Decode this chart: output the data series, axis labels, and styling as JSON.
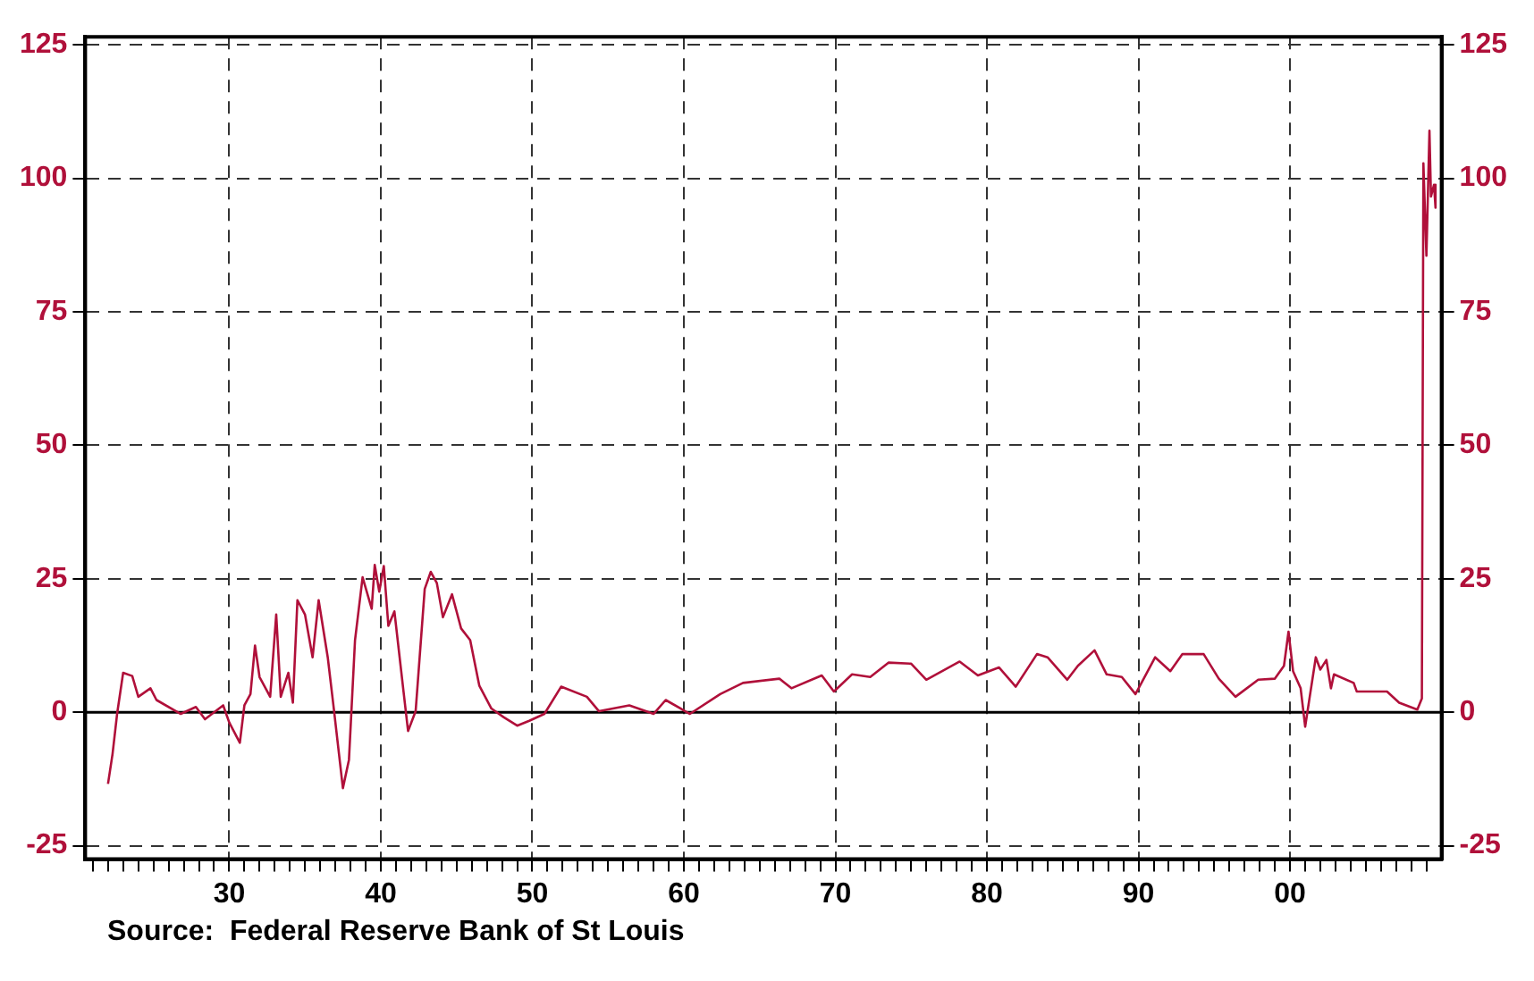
{
  "chart_data": {
    "type": "line",
    "x": [
      1922.0,
      1922.3,
      1922.6,
      1923.0,
      1923.6,
      1924.0,
      1924.8,
      1925.2,
      1926.8,
      1927.8,
      1928.4,
      1929.6,
      1930.0,
      1930.7,
      1931.0,
      1931.4,
      1931.7,
      1932.0,
      1932.7,
      1933.1,
      1933.4,
      1933.9,
      1934.2,
      1934.5,
      1935.0,
      1935.5,
      1935.9,
      1936.5,
      1936.9,
      1937.5,
      1937.9,
      1938.3,
      1938.8,
      1939.4,
      1939.6,
      1939.9,
      1940.2,
      1940.5,
      1940.9,
      1941.5,
      1941.8,
      1942.3,
      1942.9,
      1943.3,
      1943.7,
      1944.1,
      1944.7,
      1945.3,
      1945.9,
      1946.5,
      1947.3,
      1948.1,
      1949.0,
      1949.8,
      1950.8,
      1951.9,
      1953.6,
      1954.4,
      1956.4,
      1958.0,
      1958.8,
      1960.4,
      1962.4,
      1963.9,
      1966.3,
      1967.1,
      1969.1,
      1969.9,
      1971.1,
      1972.3,
      1973.5,
      1975.0,
      1976.0,
      1978.2,
      1979.4,
      1980.8,
      1981.9,
      1983.3,
      1984.0,
      1985.3,
      1986.0,
      1987.1,
      1987.9,
      1988.9,
      1989.8,
      1991.1,
      1992.1,
      1992.9,
      1994.3,
      1995.3,
      1996.4,
      1997.9,
      1999.0,
      1999.6,
      1999.9,
      2000.2,
      2000.7,
      2001.0,
      2001.3,
      2001.7,
      2002.0,
      2002.4,
      2002.7,
      2002.9,
      2004.2,
      2004.4,
      2006.4,
      2007.2,
      2008.4,
      2008.7,
      2008.8,
      2009.0,
      2009.2,
      2009.3,
      2009.5,
      2009.6
    ],
    "series": [
      {
        "color": "#b0103a",
        "values": [
          -13.4,
          -7.8,
          -0.3,
          7.4,
          6.8,
          2.9,
          4.5,
          2.3,
          -0.3,
          1,
          -1.3,
          1.3,
          -1.9,
          -5.7,
          1.3,
          3.4,
          12.5,
          6.6,
          2.9,
          18.3,
          2.9,
          7.4,
          1.8,
          21,
          18.3,
          10.3,
          21,
          10.3,
          0.7,
          -14.2,
          -8.9,
          13.5,
          25.3,
          19.4,
          27.6,
          22.6,
          27.4,
          16.2,
          18.9,
          3.9,
          -3.5,
          0.2,
          23.1,
          26.3,
          24.2,
          17.8,
          22.1,
          15.7,
          13.5,
          5,
          0.7,
          -0.9,
          -2.5,
          -1.6,
          -0.3,
          4.8,
          2.9,
          0.2,
          1.3,
          -0.3,
          2.3,
          -0.3,
          3.4,
          5.5,
          6.3,
          4.5,
          6.9,
          3.9,
          7.1,
          6.6,
          9.3,
          9.1,
          6.1,
          9.5,
          6.9,
          8.4,
          4.8,
          10.9,
          10.3,
          6.1,
          8.7,
          11.6,
          7.1,
          6.6,
          3.4,
          10.3,
          7.7,
          10.9,
          10.9,
          6.3,
          2.9,
          6.1,
          6.3,
          8.7,
          15.1,
          7.7,
          4.5,
          -2.7,
          2.9,
          10.3,
          8,
          9.8,
          4.5,
          7.1,
          5.5,
          3.9,
          3.9,
          1.8,
          0.5,
          2.6,
          102.8,
          85.5,
          108.9,
          96.6,
          98.8,
          94.5
        ]
      }
    ],
    "xlim": [
      1920.5,
      2010
    ],
    "xticks": [
      {
        "value": 1921,
        "label": null
      },
      {
        "value": 1922,
        "label": null
      },
      {
        "value": 1923,
        "label": null
      },
      {
        "value": 1924,
        "label": null
      },
      {
        "value": 1925,
        "label": null
      },
      {
        "value": 1926,
        "label": null
      },
      {
        "value": 1927,
        "label": null
      },
      {
        "value": 1928,
        "label": null
      },
      {
        "value": 1929,
        "label": null
      },
      {
        "value": 1930,
        "label": "30"
      },
      {
        "value": 1931,
        "label": null
      },
      {
        "value": 1932,
        "label": null
      },
      {
        "value": 1933,
        "label": null
      },
      {
        "value": 1934,
        "label": null
      },
      {
        "value": 1935,
        "label": null
      },
      {
        "value": 1936,
        "label": null
      },
      {
        "value": 1937,
        "label": null
      },
      {
        "value": 1938,
        "label": null
      },
      {
        "value": 1939,
        "label": null
      },
      {
        "value": 1940,
        "label": "40"
      },
      {
        "value": 1941,
        "label": null
      },
      {
        "value": 1942,
        "label": null
      },
      {
        "value": 1943,
        "label": null
      },
      {
        "value": 1944,
        "label": null
      },
      {
        "value": 1945,
        "label": null
      },
      {
        "value": 1946,
        "label": null
      },
      {
        "value": 1947,
        "label": null
      },
      {
        "value": 1948,
        "label": null
      },
      {
        "value": 1949,
        "label": null
      },
      {
        "value": 1950,
        "label": "50"
      },
      {
        "value": 1951,
        "label": null
      },
      {
        "value": 1952,
        "label": null
      },
      {
        "value": 1953,
        "label": null
      },
      {
        "value": 1954,
        "label": null
      },
      {
        "value": 1955,
        "label": null
      },
      {
        "value": 1956,
        "label": null
      },
      {
        "value": 1957,
        "label": null
      },
      {
        "value": 1958,
        "label": null
      },
      {
        "value": 1959,
        "label": null
      },
      {
        "value": 1960,
        "label": "60"
      },
      {
        "value": 1961,
        "label": null
      },
      {
        "value": 1962,
        "label": null
      },
      {
        "value": 1963,
        "label": null
      },
      {
        "value": 1964,
        "label": null
      },
      {
        "value": 1965,
        "label": null
      },
      {
        "value": 1966,
        "label": null
      },
      {
        "value": 1967,
        "label": null
      },
      {
        "value": 1968,
        "label": null
      },
      {
        "value": 1969,
        "label": null
      },
      {
        "value": 1970,
        "label": "70"
      },
      {
        "value": 1971,
        "label": null
      },
      {
        "value": 1972,
        "label": null
      },
      {
        "value": 1973,
        "label": null
      },
      {
        "value": 1974,
        "label": null
      },
      {
        "value": 1975,
        "label": null
      },
      {
        "value": 1976,
        "label": null
      },
      {
        "value": 1977,
        "label": null
      },
      {
        "value": 1978,
        "label": null
      },
      {
        "value": 1979,
        "label": null
      },
      {
        "value": 1980,
        "label": "80"
      },
      {
        "value": 1981,
        "label": null
      },
      {
        "value": 1982,
        "label": null
      },
      {
        "value": 1983,
        "label": null
      },
      {
        "value": 1984,
        "label": null
      },
      {
        "value": 1985,
        "label": null
      },
      {
        "value": 1986,
        "label": null
      },
      {
        "value": 1987,
        "label": null
      },
      {
        "value": 1988,
        "label": null
      },
      {
        "value": 1989,
        "label": null
      },
      {
        "value": 1990,
        "label": "90"
      },
      {
        "value": 1991,
        "label": null
      },
      {
        "value": 1992,
        "label": null
      },
      {
        "value": 1993,
        "label": null
      },
      {
        "value": 1994,
        "label": null
      },
      {
        "value": 1995,
        "label": null
      },
      {
        "value": 1996,
        "label": null
      },
      {
        "value": 1997,
        "label": null
      },
      {
        "value": 1998,
        "label": null
      },
      {
        "value": 1999,
        "label": null
      },
      {
        "value": 2000,
        "label": "00"
      },
      {
        "value": 2001,
        "label": null
      },
      {
        "value": 2002,
        "label": null
      },
      {
        "value": 2003,
        "label": null
      },
      {
        "value": 2004,
        "label": null
      },
      {
        "value": 2005,
        "label": null
      },
      {
        "value": 2006,
        "label": null
      },
      {
        "value": 2007,
        "label": null
      },
      {
        "value": 2008,
        "label": null
      },
      {
        "value": 2009,
        "label": null
      }
    ],
    "ylim": [
      -27.5,
      126.5
    ],
    "yticks": [
      -25,
      0,
      25,
      50,
      75,
      100,
      125
    ],
    "y2lim": [
      -27.5,
      126.5
    ],
    "y2ticks": [
      -25,
      0,
      25,
      50,
      75,
      100,
      125
    ],
    "ref_lines": [
      {
        "axis": "y",
        "value": 0,
        "color": "#000000",
        "line_style": "solid"
      }
    ],
    "grid": true,
    "legend": false,
    "marker": "none",
    "line_style": "solid",
    "annotations": [
      "Source:  Federal Reserve Bank of St Louis"
    ]
  }
}
